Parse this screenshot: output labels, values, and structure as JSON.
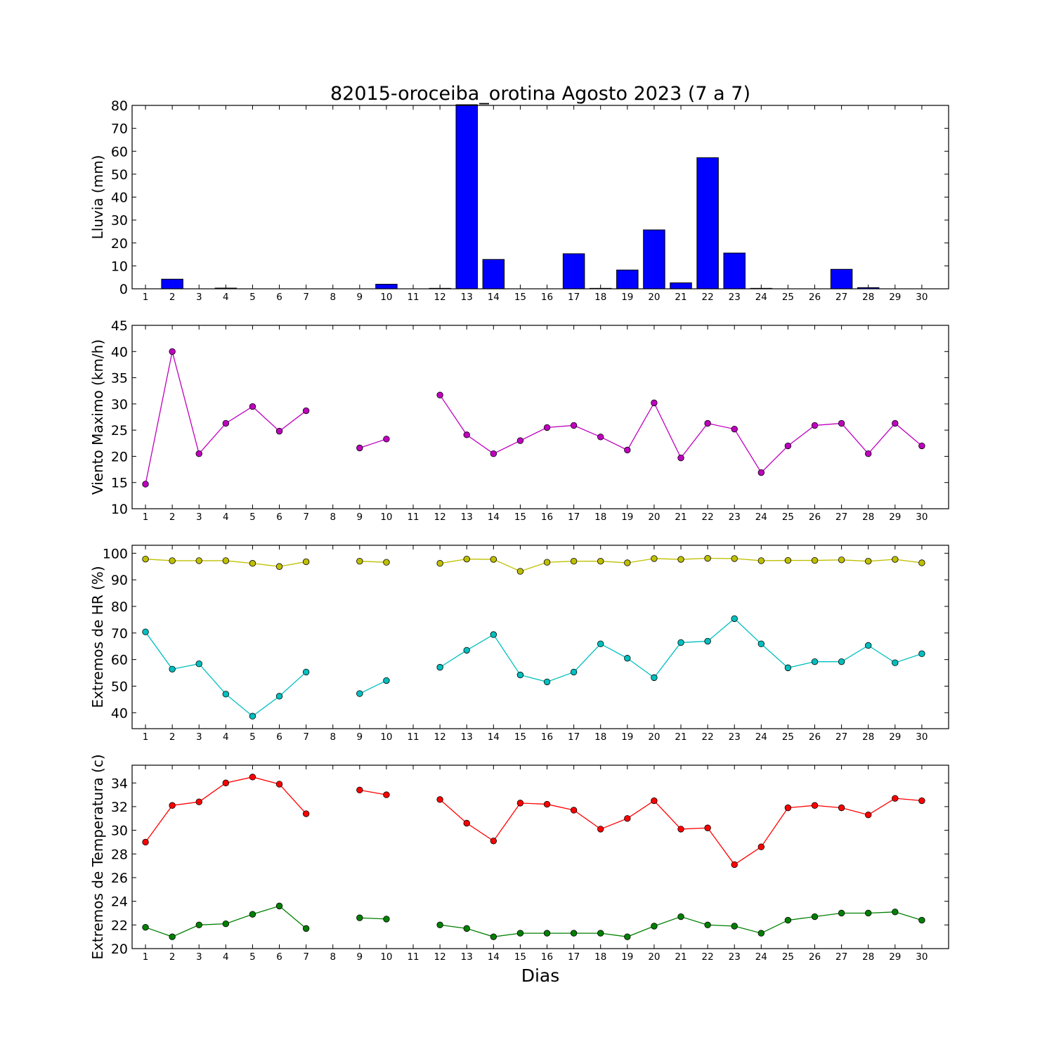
{
  "title": "82015-oroceiba_orotina Agosto 2023  (7 a 7)",
  "xlabel": "Dias",
  "chart_data": [
    {
      "type": "bar",
      "ylabel": "Lluvia (mm)",
      "ylim": [
        0,
        80
      ],
      "yticks": [
        0,
        10,
        20,
        30,
        40,
        50,
        60,
        70,
        80
      ],
      "categories": [
        1,
        2,
        3,
        4,
        5,
        6,
        7,
        8,
        9,
        10,
        11,
        12,
        13,
        14,
        15,
        16,
        17,
        18,
        19,
        20,
        21,
        22,
        23,
        24,
        25,
        26,
        27,
        28,
        29,
        30
      ],
      "series": [
        {
          "color": "#0000ff",
          "values": [
            0,
            4.2,
            0,
            0.3,
            0,
            0,
            0,
            0,
            0,
            2.0,
            0,
            0.2,
            80.3,
            12.8,
            0,
            0,
            15.3,
            0.2,
            8.2,
            25.7,
            2.6,
            57.2,
            15.6,
            0.2,
            0,
            0,
            8.5,
            0.5,
            0,
            0
          ]
        }
      ]
    },
    {
      "type": "line",
      "ylabel": "Viento Maximo (km/h)",
      "ylim": [
        10,
        45
      ],
      "yticks": [
        10,
        15,
        20,
        25,
        30,
        35,
        40,
        45
      ],
      "x": [
        1,
        2,
        3,
        4,
        5,
        6,
        7,
        8,
        9,
        10,
        11,
        12,
        13,
        14,
        15,
        16,
        17,
        18,
        19,
        20,
        21,
        22,
        23,
        24,
        25,
        26,
        27,
        28,
        29,
        30
      ],
      "series": [
        {
          "color": "#bf00bf",
          "values": [
            14.7,
            40.0,
            20.5,
            26.3,
            29.5,
            24.8,
            28.7,
            null,
            21.6,
            23.3,
            null,
            31.7,
            24.1,
            20.5,
            23.0,
            25.5,
            25.9,
            23.7,
            21.2,
            30.2,
            19.7,
            26.3,
            25.2,
            16.9,
            22.0,
            25.9,
            26.3,
            20.5,
            26.3,
            22.0
          ]
        }
      ]
    },
    {
      "type": "line",
      "ylabel": "Extremos de HR (%)",
      "ylim": [
        34,
        103
      ],
      "yticks": [
        40,
        50,
        60,
        70,
        80,
        90,
        100
      ],
      "x": [
        1,
        2,
        3,
        4,
        5,
        6,
        7,
        8,
        9,
        10,
        11,
        12,
        13,
        14,
        15,
        16,
        17,
        18,
        19,
        20,
        21,
        22,
        23,
        24,
        25,
        26,
        27,
        28,
        29,
        30
      ],
      "series": [
        {
          "color": "#bfbf00",
          "values": [
            97.8,
            97.2,
            97.2,
            97.2,
            96.2,
            95.0,
            96.8,
            null,
            97.0,
            96.6,
            null,
            96.2,
            97.8,
            97.7,
            93.2,
            96.6,
            97.0,
            97.0,
            96.4,
            98.0,
            97.7,
            98.1,
            98.0,
            97.2,
            97.3,
            97.3,
            97.5,
            97.0,
            97.7,
            96.4
          ]
        },
        {
          "color": "#00bfbf",
          "values": [
            70.4,
            56.4,
            58.4,
            47.0,
            38.7,
            46.2,
            55.3,
            null,
            47.2,
            52.1,
            null,
            57.1,
            63.5,
            69.4,
            54.2,
            51.6,
            55.3,
            65.9,
            60.5,
            53.2,
            66.4,
            66.9,
            75.4,
            65.9,
            56.9,
            59.2,
            59.2,
            65.3,
            58.8,
            62.2
          ]
        }
      ]
    },
    {
      "type": "line",
      "ylabel": "Extremos de Temperatura (c)",
      "ylim": [
        20,
        35.5
      ],
      "yticks": [
        20,
        22,
        24,
        26,
        28,
        30,
        32,
        34
      ],
      "x": [
        1,
        2,
        3,
        4,
        5,
        6,
        7,
        8,
        9,
        10,
        11,
        12,
        13,
        14,
        15,
        16,
        17,
        18,
        19,
        20,
        21,
        22,
        23,
        24,
        25,
        26,
        27,
        28,
        29,
        30
      ],
      "series": [
        {
          "color": "#ff0000",
          "values": [
            29.0,
            32.1,
            32.4,
            34.0,
            34.5,
            33.9,
            31.4,
            null,
            33.4,
            33.0,
            null,
            32.6,
            30.6,
            29.1,
            32.3,
            32.2,
            31.7,
            30.1,
            31.0,
            32.5,
            30.1,
            30.2,
            27.1,
            28.6,
            31.9,
            32.1,
            31.9,
            31.3,
            32.7,
            32.5
          ]
        },
        {
          "color": "#008000",
          "values": [
            21.8,
            21.0,
            22.0,
            22.1,
            22.9,
            23.6,
            21.7,
            null,
            22.6,
            22.5,
            null,
            22.0,
            21.7,
            21.0,
            21.3,
            21.3,
            21.3,
            21.3,
            21.0,
            21.9,
            22.7,
            22.0,
            21.9,
            21.3,
            22.4,
            22.7,
            23.0,
            23.0,
            23.1,
            22.4
          ]
        }
      ]
    }
  ]
}
